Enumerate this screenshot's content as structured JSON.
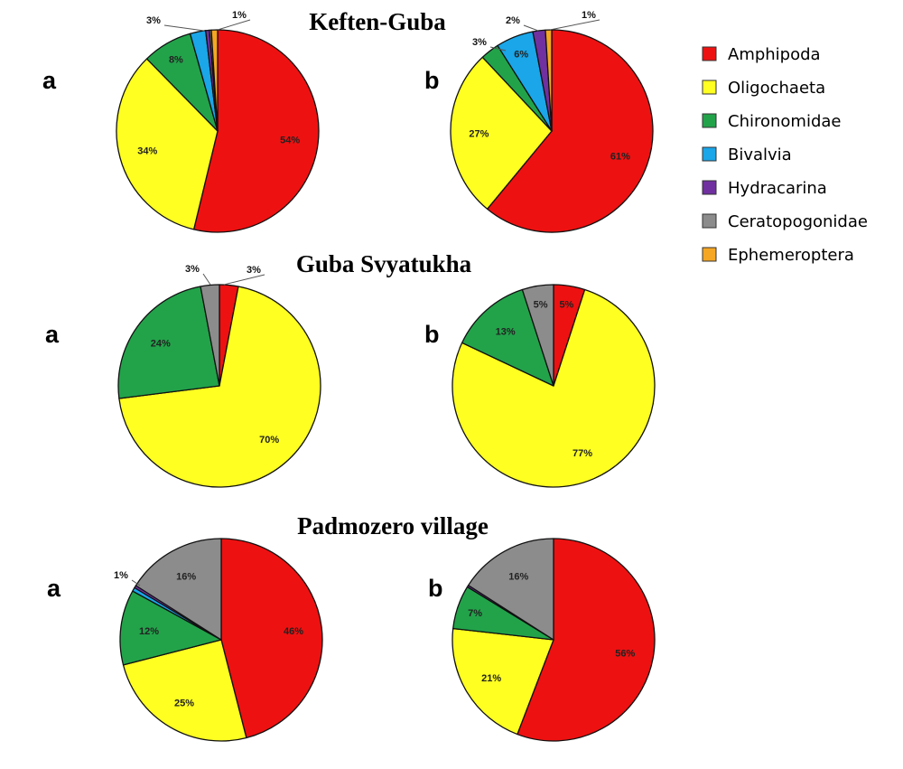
{
  "legend": {
    "items": [
      {
        "label": "Amphipoda",
        "color": "#ee1111"
      },
      {
        "label": "Oligochaeta",
        "color": "#ffff22"
      },
      {
        "label": "Chironomidae",
        "color": "#22a34a"
      },
      {
        "label": "Bivalvia",
        "color": "#1aa6e8"
      },
      {
        "label": "Hydracarina",
        "color": "#7030a0"
      },
      {
        "label": "Ceratopogonidae",
        "color": "#8c8c8c"
      },
      {
        "label": "Ephemeroptera",
        "color": "#f5a623"
      }
    ]
  },
  "chart_data": [
    {
      "type": "pie",
      "site": "Keften-Guba",
      "panel": "a",
      "slices": [
        {
          "category": "Amphipoda",
          "value": 54,
          "label": "54%"
        },
        {
          "category": "Oligochaeta",
          "value": 34,
          "label": "34%"
        },
        {
          "category": "Chironomidae",
          "value": 8,
          "label": "8%"
        },
        {
          "category": "Bivalvia",
          "value": 2.5,
          "label": "3%"
        },
        {
          "category": "Hydracarina",
          "value": 0.6,
          "label": ""
        },
        {
          "category": "Ceratopogonidae",
          "value": 0.3,
          "label": ""
        },
        {
          "category": "Ephemeroptera",
          "value": 1,
          "label": "1%"
        }
      ]
    },
    {
      "type": "pie",
      "site": "Keften-Guba",
      "panel": "b",
      "slices": [
        {
          "category": "Amphipoda",
          "value": 61,
          "label": "61%"
        },
        {
          "category": "Oligochaeta",
          "value": 27,
          "label": "27%"
        },
        {
          "category": "Chironomidae",
          "value": 3,
          "label": "3%"
        },
        {
          "category": "Bivalvia",
          "value": 6,
          "label": "6%"
        },
        {
          "category": "Hydracarina",
          "value": 2,
          "label": "2%"
        },
        {
          "category": "Ephemeroptera",
          "value": 1,
          "label": "1%"
        }
      ]
    },
    {
      "type": "pie",
      "site": "Guba Svyatukha",
      "panel": "a",
      "slices": [
        {
          "category": "Amphipoda",
          "value": 3,
          "label": "3%"
        },
        {
          "category": "Oligochaeta",
          "value": 70,
          "label": "70%"
        },
        {
          "category": "Chironomidae",
          "value": 24,
          "label": "24%"
        },
        {
          "category": "Ceratopogonidae",
          "value": 3,
          "label": "3%"
        }
      ]
    },
    {
      "type": "pie",
      "site": "Guba Svyatukha",
      "panel": "b",
      "slices": [
        {
          "category": "Amphipoda",
          "value": 5,
          "label": "5%"
        },
        {
          "category": "Oligochaeta",
          "value": 77,
          "label": "77%"
        },
        {
          "category": "Chironomidae",
          "value": 13,
          "label": "13%"
        },
        {
          "category": "Ceratopogonidae",
          "value": 5,
          "label": "5%"
        }
      ]
    },
    {
      "type": "pie",
      "site": "Padmozero village",
      "panel": "a",
      "slices": [
        {
          "category": "Amphipoda",
          "value": 46,
          "label": "46%"
        },
        {
          "category": "Oligochaeta",
          "value": 25,
          "label": "25%"
        },
        {
          "category": "Chironomidae",
          "value": 12,
          "label": "12%"
        },
        {
          "category": "Bivalvia",
          "value": 0.6,
          "label": "1%"
        },
        {
          "category": "Hydracarina",
          "value": 0.4,
          "label": ""
        },
        {
          "category": "Ceratopogonidae",
          "value": 16,
          "label": "16%"
        }
      ]
    },
    {
      "type": "pie",
      "site": "Padmozero village",
      "panel": "b",
      "slices": [
        {
          "category": "Amphipoda",
          "value": 56,
          "label": "56%"
        },
        {
          "category": "Oligochaeta",
          "value": 21,
          "label": "21%"
        },
        {
          "category": "Chironomidae",
          "value": 7,
          "label": "7%"
        },
        {
          "category": "Hydracarina",
          "value": 0.3,
          "label": ""
        },
        {
          "category": "Ceratopogonidae",
          "value": 16,
          "label": "16%"
        }
      ]
    }
  ]
}
